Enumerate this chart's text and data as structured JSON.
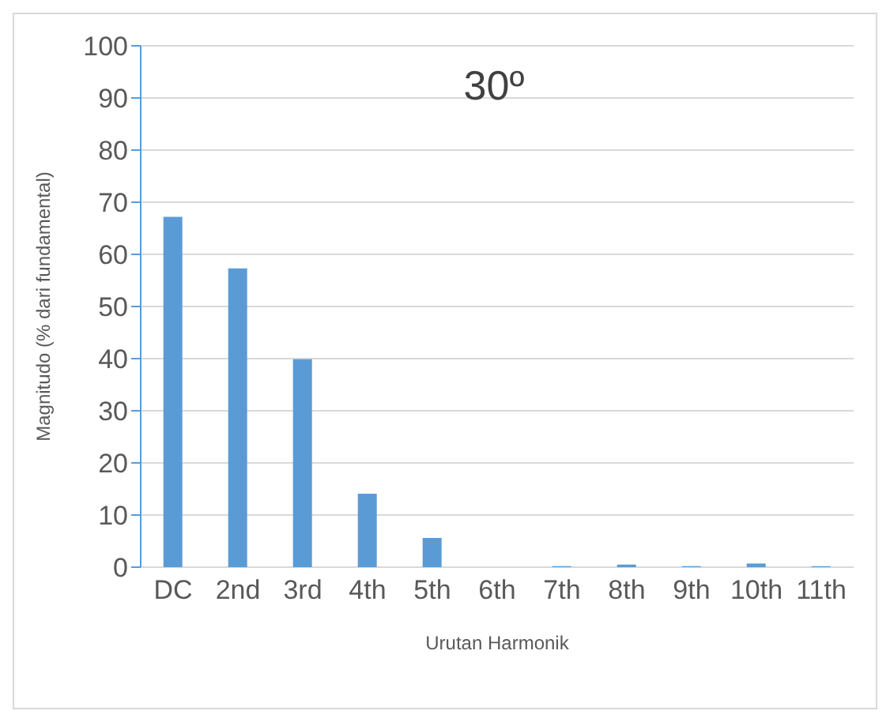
{
  "chart_data": {
    "type": "bar",
    "title": "30º",
    "xlabel": "Urutan Harmonik",
    "ylabel": "Magnitudo (% dari fundamental)",
    "categories": [
      "DC",
      "2nd",
      "3rd",
      "4th",
      "5th",
      "6th",
      "7th",
      "8th",
      "9th",
      "10th",
      "11th"
    ],
    "values": [
      67.2,
      57.3,
      39.9,
      14.1,
      5.6,
      0,
      0.2,
      0.5,
      0.2,
      0.7,
      0.2
    ],
    "color": "#5b9bd5",
    "ylim": [
      0,
      100
    ],
    "yticks": [
      0,
      10,
      20,
      30,
      40,
      50,
      60,
      70,
      80,
      90,
      100
    ],
    "grid": "y"
  }
}
